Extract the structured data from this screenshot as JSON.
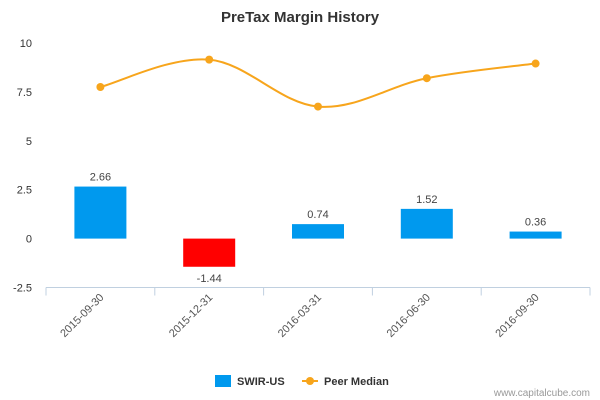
{
  "chart_data": {
    "type": "bar",
    "title": "PreTax Margin History",
    "categories": [
      "2015-09-30",
      "2015-12-31",
      "2016-03-31",
      "2016-06-30",
      "2016-09-30"
    ],
    "ylim": [
      -2.5,
      10
    ],
    "yticks": [
      "10",
      "7.5",
      "5",
      "2.5",
      "0",
      "-2.5"
    ],
    "ytick_values": [
      10,
      7.5,
      5,
      2.5,
      0,
      -2.5
    ],
    "series": [
      {
        "name": "SWIR-US",
        "type": "bar",
        "values": [
          2.66,
          -1.44,
          0.74,
          1.52,
          0.36
        ],
        "labels": [
          "2.66",
          "-1.44",
          "0.74",
          "1.52",
          "0.36"
        ],
        "color": "#0099ee",
        "negative_color": "#ff0000"
      },
      {
        "name": "Peer Median",
        "type": "line",
        "values": [
          7.75,
          9.15,
          6.75,
          8.2,
          8.95
        ],
        "color": "#f7a51c"
      }
    ],
    "legend": "bottom-center",
    "grid": false
  },
  "credit": "www.capitalcube.com"
}
